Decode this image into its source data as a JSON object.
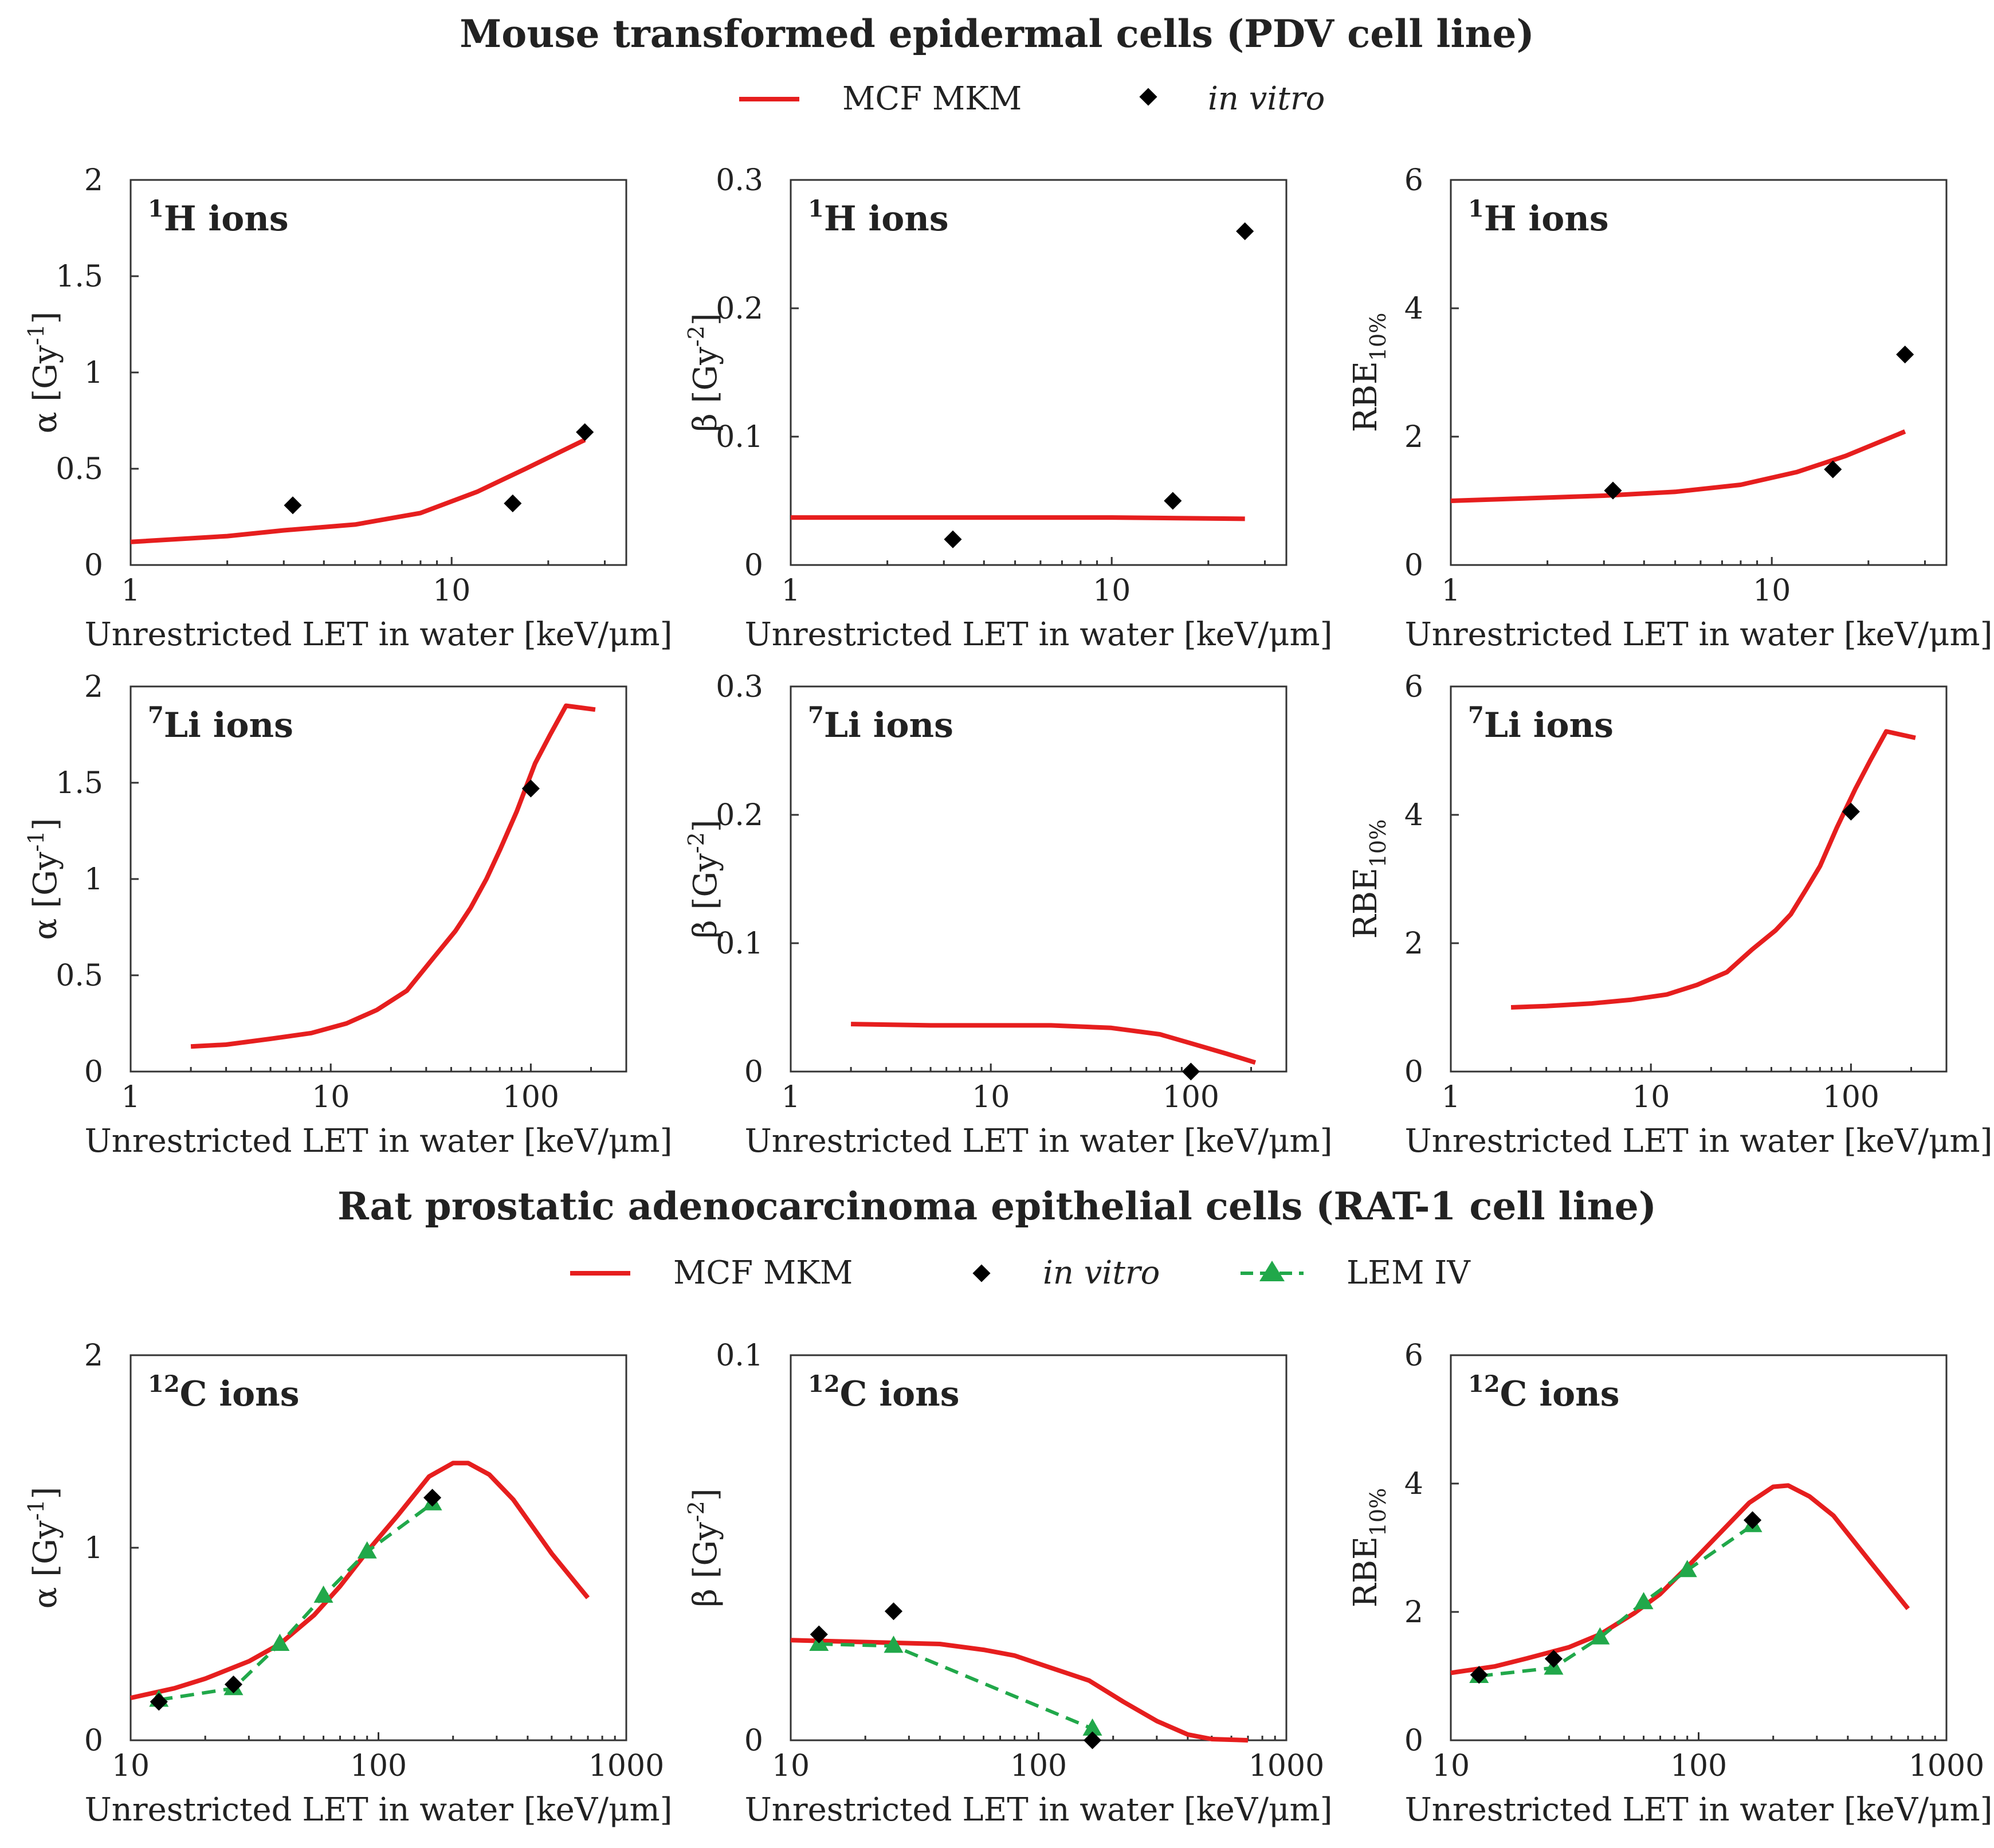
{
  "sections": [
    {
      "title": "Mouse transformed epidermal cells (PDV cell line)",
      "legend": [
        {
          "label": "MCF MKM",
          "style": "line",
          "color": "#e61e1e"
        },
        {
          "label": "in vitro",
          "style": "diamond",
          "color": "#000000",
          "italic": true
        }
      ]
    },
    {
      "title": "Rat prostatic adenocarcinoma epithelial cells (RAT-1 cell line)",
      "legend": [
        {
          "label": "MCF MKM",
          "style": "line",
          "color": "#e61e1e"
        },
        {
          "label": "in vitro",
          "style": "diamond",
          "color": "#000000",
          "italic": true
        },
        {
          "label": "LEM IV",
          "style": "dashed-triangle",
          "color": "#21a84a"
        }
      ]
    }
  ],
  "chart_data": [
    {
      "type": "line",
      "section": 0,
      "row": 0,
      "col": 0,
      "panel_label": {
        "sup": "1",
        "text": "H ions"
      },
      "xlabel": "Unrestricted LET in water [keV/μm]",
      "ylabel": {
        "base": "α [Gy",
        "sup": "-1",
        "end": "]"
      },
      "xscale": "log",
      "xlim": [
        1,
        35
      ],
      "xticks": [
        "1",
        "10"
      ],
      "ylim": [
        0,
        2
      ],
      "yticks": [
        "0",
        "0.5",
        "1",
        "1.5",
        "2"
      ],
      "series": [
        {
          "name": "MCF MKM",
          "kind": "mkm",
          "x": [
            1,
            2,
            3,
            5,
            8,
            12,
            17,
            26
          ],
          "y": [
            0.12,
            0.15,
            0.18,
            0.21,
            0.27,
            0.38,
            0.5,
            0.65
          ]
        },
        {
          "name": "in vitro",
          "kind": "exp",
          "x": [
            3.2,
            15.5,
            26
          ],
          "y": [
            0.31,
            0.32,
            0.69
          ]
        }
      ]
    },
    {
      "type": "line",
      "section": 0,
      "row": 0,
      "col": 1,
      "panel_label": {
        "sup": "1",
        "text": "H ions"
      },
      "xlabel": "Unrestricted LET in water [keV/μm]",
      "ylabel": {
        "base": "β [Gy",
        "sup": "-2",
        "end": "]"
      },
      "xscale": "log",
      "xlim": [
        1,
        35
      ],
      "xticks": [
        "1",
        "10"
      ],
      "ylim": [
        0,
        0.3
      ],
      "yticks": [
        "0",
        "0.1",
        "0.2",
        "0.3"
      ],
      "series": [
        {
          "name": "MCF MKM",
          "kind": "mkm",
          "x": [
            1,
            3,
            10,
            26
          ],
          "y": [
            0.037,
            0.037,
            0.037,
            0.036
          ]
        },
        {
          "name": "in vitro",
          "kind": "exp",
          "x": [
            3.2,
            15.5,
            26
          ],
          "y": [
            0.02,
            0.05,
            0.26
          ]
        }
      ]
    },
    {
      "type": "line",
      "section": 0,
      "row": 0,
      "col": 2,
      "panel_label": {
        "sup": "1",
        "text": "H ions"
      },
      "xlabel": "Unrestricted LET in water [keV/μm]",
      "ylabel": {
        "base": "RBE",
        "sub": "10%"
      },
      "xscale": "log",
      "xlim": [
        1,
        35
      ],
      "xticks": [
        "1",
        "10"
      ],
      "ylim": [
        0,
        6
      ],
      "yticks": [
        "0",
        "2",
        "4",
        "6"
      ],
      "series": [
        {
          "name": "MCF MKM",
          "kind": "mkm",
          "x": [
            1,
            2,
            3,
            5,
            8,
            12,
            17,
            26
          ],
          "y": [
            1.0,
            1.05,
            1.08,
            1.14,
            1.25,
            1.45,
            1.7,
            2.08
          ]
        },
        {
          "name": "in vitro",
          "kind": "exp",
          "x": [
            3.2,
            15.5,
            26
          ],
          "y": [
            1.16,
            1.49,
            3.28
          ]
        }
      ]
    },
    {
      "type": "line",
      "section": 0,
      "row": 1,
      "col": 0,
      "panel_label": {
        "sup": "7",
        "text": "Li ions"
      },
      "xlabel": "Unrestricted LET in water [keV/μm]",
      "ylabel": {
        "base": "α [Gy",
        "sup": "-1",
        "end": "]"
      },
      "xscale": "log",
      "xlim": [
        1,
        300
      ],
      "xticks": [
        "1",
        "10",
        "100"
      ],
      "ylim": [
        0,
        2
      ],
      "yticks": [
        "0",
        "0.5",
        "1",
        "1.5",
        "2"
      ],
      "series": [
        {
          "name": "MCF MKM",
          "kind": "mkm",
          "x": [
            2,
            3,
            5,
            8,
            12,
            17,
            24,
            32,
            42,
            50,
            60,
            70,
            85,
            105,
            125,
            150,
            210
          ],
          "y": [
            0.13,
            0.14,
            0.17,
            0.2,
            0.25,
            0.32,
            0.42,
            0.58,
            0.73,
            0.85,
            1.0,
            1.15,
            1.35,
            1.6,
            1.75,
            1.9,
            1.88
          ]
        },
        {
          "name": "in vitro",
          "kind": "exp",
          "x": [
            100
          ],
          "y": [
            1.47
          ]
        }
      ]
    },
    {
      "type": "line",
      "section": 0,
      "row": 1,
      "col": 1,
      "panel_label": {
        "sup": "7",
        "text": "Li ions"
      },
      "xlabel": "Unrestricted LET in water [keV/μm]",
      "ylabel": {
        "base": "β [Gy",
        "sup": "-2",
        "end": "]"
      },
      "xscale": "log",
      "xlim": [
        1,
        300
      ],
      "xticks": [
        "1",
        "10",
        "100"
      ],
      "ylim": [
        0,
        0.3
      ],
      "yticks": [
        "0",
        "0.1",
        "0.2",
        "0.3"
      ],
      "series": [
        {
          "name": "MCF MKM",
          "kind": "mkm",
          "x": [
            2,
            5,
            10,
            20,
            40,
            70,
            100,
            150,
            210
          ],
          "y": [
            0.037,
            0.036,
            0.036,
            0.036,
            0.034,
            0.029,
            0.022,
            0.014,
            0.007
          ]
        },
        {
          "name": "in vitro",
          "kind": "exp",
          "x": [
            100
          ],
          "y": [
            0.0
          ]
        }
      ]
    },
    {
      "type": "line",
      "section": 0,
      "row": 1,
      "col": 2,
      "panel_label": {
        "sup": "7",
        "text": "Li ions"
      },
      "xlabel": "Unrestricted LET in water [keV/μm]",
      "ylabel": {
        "base": "RBE",
        "sub": "10%"
      },
      "xscale": "log",
      "xlim": [
        1,
        300
      ],
      "xticks": [
        "1",
        "10",
        "100"
      ],
      "ylim": [
        0,
        6
      ],
      "yticks": [
        "0",
        "2",
        "4",
        "6"
      ],
      "series": [
        {
          "name": "MCF MKM",
          "kind": "mkm",
          "x": [
            2,
            3,
            5,
            8,
            12,
            17,
            24,
            32,
            42,
            50,
            60,
            70,
            85,
            105,
            125,
            150,
            210
          ],
          "y": [
            1.0,
            1.02,
            1.06,
            1.12,
            1.2,
            1.35,
            1.55,
            1.9,
            2.2,
            2.45,
            2.85,
            3.2,
            3.8,
            4.4,
            4.85,
            5.3,
            5.2
          ]
        },
        {
          "name": "in vitro",
          "kind": "exp",
          "x": [
            100
          ],
          "y": [
            4.05
          ]
        }
      ]
    },
    {
      "type": "line",
      "section": 1,
      "row": 2,
      "col": 0,
      "panel_label": {
        "sup": "12",
        "text": "C ions"
      },
      "xlabel": "Unrestricted LET in water [keV/μm]",
      "ylabel": {
        "base": "α [Gy",
        "sup": "-1",
        "end": "]"
      },
      "xscale": "log",
      "xlim": [
        10,
        1000
      ],
      "xticks": [
        "10",
        "100",
        "1000"
      ],
      "ylim": [
        0,
        2
      ],
      "yticks": [
        "0",
        "1",
        "2"
      ],
      "series": [
        {
          "name": "MCF MKM",
          "kind": "mkm",
          "x": [
            10,
            15,
            20,
            30,
            40,
            55,
            70,
            90,
            120,
            160,
            200,
            230,
            280,
            350,
            500,
            700
          ],
          "y": [
            0.22,
            0.27,
            0.32,
            0.41,
            0.5,
            0.65,
            0.8,
            0.98,
            1.17,
            1.37,
            1.44,
            1.44,
            1.38,
            1.25,
            0.97,
            0.74
          ]
        },
        {
          "name": "in vitro",
          "kind": "exp",
          "x": [
            13,
            26,
            165
          ],
          "y": [
            0.2,
            0.29,
            1.26
          ]
        },
        {
          "name": "LEM IV",
          "kind": "lem",
          "x": [
            13,
            26,
            40,
            60,
            90,
            165
          ],
          "y": [
            0.21,
            0.27,
            0.5,
            0.75,
            0.98,
            1.23
          ]
        }
      ]
    },
    {
      "type": "line",
      "section": 1,
      "row": 2,
      "col": 1,
      "panel_label": {
        "sup": "12",
        "text": "C ions"
      },
      "xlabel": "Unrestricted LET in water [keV/μm]",
      "ylabel": {
        "base": "β [Gy",
        "sup": "-2",
        "end": "]"
      },
      "xscale": "log",
      "xlim": [
        10,
        1000
      ],
      "xticks": [
        "10",
        "100",
        "1000"
      ],
      "ylim": [
        0,
        0.1
      ],
      "yticks": [
        "0",
        "0.1"
      ],
      "series": [
        {
          "name": "MCF MKM",
          "kind": "mkm",
          "x": [
            10,
            20,
            40,
            60,
            80,
            110,
            160,
            220,
            300,
            400,
            500,
            700
          ],
          "y": [
            0.026,
            0.0255,
            0.025,
            0.0235,
            0.022,
            0.019,
            0.0155,
            0.01,
            0.005,
            0.0015,
            0.0003,
            0.0
          ]
        },
        {
          "name": "in vitro",
          "kind": "exp",
          "x": [
            13,
            26,
            165
          ],
          "y": [
            0.0275,
            0.0335,
            0.0
          ]
        },
        {
          "name": "LEM IV",
          "kind": "lem",
          "x": [
            13,
            26,
            165
          ],
          "y": [
            0.025,
            0.0245,
            0.003
          ]
        }
      ]
    },
    {
      "type": "line",
      "section": 1,
      "row": 2,
      "col": 2,
      "panel_label": {
        "sup": "12",
        "text": "C ions"
      },
      "xlabel": "Unrestricted LET in water [keV/μm]",
      "ylabel": {
        "base": "RBE",
        "sub": "10%"
      },
      "xscale": "log",
      "xlim": [
        10,
        1000
      ],
      "xticks": [
        "10",
        "100",
        "1000"
      ],
      "ylim": [
        0,
        6
      ],
      "yticks": [
        "0",
        "2",
        "4",
        "6"
      ],
      "series": [
        {
          "name": "MCF MKM",
          "kind": "mkm",
          "x": [
            10,
            15,
            20,
            30,
            40,
            55,
            70,
            90,
            120,
            160,
            200,
            230,
            280,
            350,
            500,
            700
          ],
          "y": [
            1.05,
            1.15,
            1.27,
            1.45,
            1.65,
            1.98,
            2.28,
            2.7,
            3.2,
            3.7,
            3.95,
            3.97,
            3.8,
            3.5,
            2.75,
            2.05
          ]
        },
        {
          "name": "in vitro",
          "kind": "exp",
          "x": [
            13,
            26,
            165
          ],
          "y": [
            1.02,
            1.27,
            3.43
          ]
        },
        {
          "name": "LEM IV",
          "kind": "lem",
          "x": [
            13,
            26,
            40,
            60,
            90,
            165
          ],
          "y": [
            1.0,
            1.13,
            1.6,
            2.15,
            2.65,
            3.35
          ]
        }
      ]
    }
  ]
}
